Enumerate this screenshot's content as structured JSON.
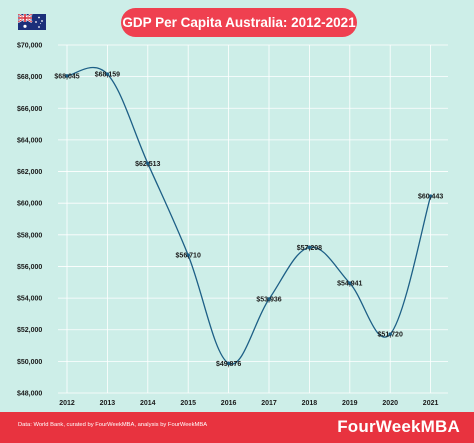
{
  "header": {
    "title": "GDP Per Capita Australia: 2012-2021",
    "flag_icon": "australia-flag-icon"
  },
  "chart_data": {
    "type": "line",
    "title": "GDP Per Capita Australia: 2012-2021",
    "xlabel": "",
    "ylabel": "",
    "x": [
      2012,
      2013,
      2014,
      2015,
      2016,
      2017,
      2018,
      2019,
      2020,
      2021
    ],
    "x_labels": [
      "2012",
      "2013",
      "2014",
      "2015",
      "2016",
      "2017",
      "2018",
      "2019",
      "2020",
      "2021"
    ],
    "series": [
      {
        "values": [
          68045,
          68159,
          62513,
          56710,
          49876,
          53936,
          57208,
          54941,
          51720,
          60443
        ]
      }
    ],
    "data_labels": [
      "$68,045",
      "$68,159",
      "$62,513",
      "$56,710",
      "$49,876",
      "$53,936",
      "$57,208",
      "$54,941",
      "$51,720",
      "$60,443"
    ],
    "y_ticks": [
      48000,
      50000,
      52000,
      54000,
      56000,
      58000,
      60000,
      62000,
      64000,
      66000,
      68000,
      70000
    ],
    "y_tick_labels": [
      "$48,000",
      "$50,000",
      "$52,000",
      "$54,000",
      "$56,000",
      "$58,000",
      "$60,000",
      "$62,000",
      "$64,000",
      "$66,000",
      "$68,000",
      "$70,000"
    ],
    "ylim": [
      48000,
      70000
    ],
    "grid": true,
    "legend": "none",
    "colors": {
      "line": "#1d5f86",
      "background": "#cdeee8",
      "grid": "#ffffff"
    }
  },
  "footer": {
    "source": "Data: World Bank, curated by FourWeekMBA, analysis by FourWeekMBA",
    "brand": "FourWeekMBA",
    "background": "#e8333f"
  }
}
